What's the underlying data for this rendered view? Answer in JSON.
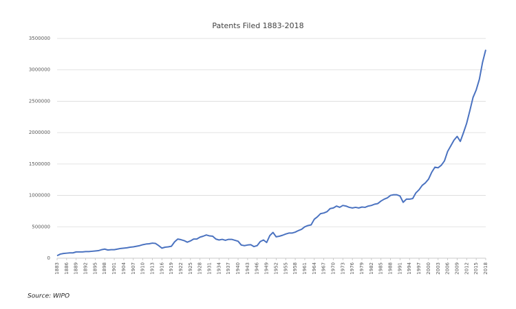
{
  "chart_data": {
    "type": "line",
    "title": "Patents Filed 1883-2018",
    "source": "Source: WIPO",
    "x": [
      1883,
      1884,
      1885,
      1886,
      1887,
      1888,
      1889,
      1890,
      1891,
      1892,
      1893,
      1894,
      1895,
      1896,
      1897,
      1898,
      1899,
      1900,
      1901,
      1902,
      1903,
      1904,
      1905,
      1906,
      1907,
      1908,
      1909,
      1910,
      1911,
      1912,
      1913,
      1914,
      1915,
      1916,
      1917,
      1918,
      1919,
      1920,
      1921,
      1922,
      1923,
      1924,
      1925,
      1926,
      1927,
      1928,
      1929,
      1930,
      1931,
      1932,
      1933,
      1934,
      1935,
      1936,
      1937,
      1938,
      1939,
      1940,
      1941,
      1942,
      1943,
      1944,
      1945,
      1946,
      1947,
      1948,
      1949,
      1950,
      1951,
      1952,
      1953,
      1954,
      1955,
      1956,
      1957,
      1958,
      1959,
      1960,
      1961,
      1962,
      1963,
      1964,
      1965,
      1966,
      1967,
      1968,
      1969,
      1970,
      1971,
      1972,
      1973,
      1974,
      1975,
      1976,
      1977,
      1978,
      1979,
      1980,
      1981,
      1982,
      1983,
      1984,
      1985,
      1986,
      1987,
      1988,
      1989,
      1990,
      1991,
      1992,
      1993,
      1994,
      1995,
      1996,
      1997,
      1998,
      1999,
      2000,
      2001,
      2002,
      2003,
      2004,
      2005,
      2006,
      2007,
      2008,
      2009,
      2010,
      2011,
      2012,
      2013,
      2014,
      2015,
      2016,
      2017,
      2018
    ],
    "values": [
      40000,
      65000,
      75000,
      80000,
      85000,
      85000,
      100000,
      100000,
      100000,
      105000,
      105000,
      110000,
      115000,
      120000,
      135000,
      145000,
      130000,
      135000,
      135000,
      145000,
      155000,
      160000,
      165000,
      175000,
      180000,
      190000,
      200000,
      215000,
      225000,
      230000,
      240000,
      235000,
      200000,
      160000,
      175000,
      180000,
      190000,
      260000,
      305000,
      295000,
      280000,
      255000,
      275000,
      305000,
      305000,
      335000,
      350000,
      370000,
      355000,
      350000,
      305000,
      290000,
      300000,
      285000,
      300000,
      300000,
      285000,
      270000,
      210000,
      200000,
      210000,
      215000,
      185000,
      200000,
      265000,
      290000,
      250000,
      360000,
      410000,
      340000,
      350000,
      365000,
      385000,
      400000,
      400000,
      415000,
      440000,
      460000,
      500000,
      520000,
      530000,
      620000,
      660000,
      710000,
      720000,
      740000,
      790000,
      800000,
      830000,
      810000,
      840000,
      830000,
      810000,
      800000,
      810000,
      800000,
      815000,
      810000,
      830000,
      840000,
      860000,
      870000,
      910000,
      940000,
      960000,
      1000000,
      1010000,
      1010000,
      990000,
      890000,
      940000,
      940000,
      950000,
      1040000,
      1090000,
      1160000,
      1200000,
      1260000,
      1370000,
      1450000,
      1440000,
      1480000,
      1550000,
      1700000,
      1790000,
      1880000,
      1940000,
      1860000,
      2000000,
      2150000,
      2350000,
      2560000,
      2680000,
      2850000,
      3120000,
      3320000
    ],
    "color": "#4a72c0",
    "xlim": [
      1883,
      2018
    ],
    "xticks": [
      1883,
      1886,
      1889,
      1892,
      1895,
      1898,
      1901,
      1904,
      1907,
      1910,
      1913,
      1916,
      1919,
      1922,
      1925,
      1928,
      1931,
      1934,
      1937,
      1940,
      1943,
      1946,
      1949,
      1952,
      1955,
      1958,
      1961,
      1964,
      1967,
      1970,
      1973,
      1976,
      1979,
      1982,
      1985,
      1988,
      1991,
      1994,
      1997,
      2000,
      2003,
      2006,
      2009,
      2012,
      2015,
      2018
    ],
    "ylim": [
      0,
      3500000
    ],
    "yticks": [
      0,
      500000,
      1000000,
      1500000,
      2000000,
      2500000,
      3000000,
      3500000
    ],
    "grid": true
  }
}
